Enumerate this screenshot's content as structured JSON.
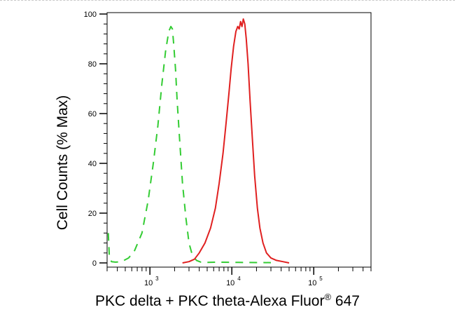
{
  "chart_data": {
    "type": "line",
    "title": "",
    "xlabel_main": "PKC delta + PKC theta-Alexa Fluor",
    "xlabel_mark": "®",
    "xlabel_tail": " 647",
    "ylabel": "Cell Counts (% Max)",
    "x_scale": "log",
    "xlim": [
      300,
      500000
    ],
    "ylim": [
      0,
      100
    ],
    "x_ticks": [
      {
        "value": 1000,
        "base": "10",
        "exp": "3"
      },
      {
        "value": 10000,
        "base": "10",
        "exp": "4"
      },
      {
        "value": 100000,
        "base": "10",
        "exp": "5"
      }
    ],
    "y_ticks": [
      0,
      20,
      40,
      60,
      80,
      100
    ],
    "grid": false,
    "series": [
      {
        "color": "#33cc33",
        "style": "dashed",
        "x": [
          310,
          320,
          340,
          380,
          450,
          550,
          650,
          800,
          950,
          1100,
          1250,
          1400,
          1550,
          1700,
          1800,
          1880,
          1950,
          2050,
          2150,
          2300,
          2500,
          2750,
          3000,
          3300,
          3700,
          4200,
          5000,
          7000,
          12000,
          30000
        ],
        "y": [
          12,
          2,
          0.5,
          0.3,
          0.5,
          2,
          5,
          12,
          25,
          40,
          55,
          72,
          85,
          93,
          95,
          94,
          88,
          78,
          65,
          50,
          32,
          18,
          8,
          3,
          1,
          0.3,
          0.2,
          0.3,
          0.2,
          0.1
        ]
      },
      {
        "color": "#e02020",
        "style": "solid",
        "x": [
          2500,
          3000,
          3500,
          4000,
          4700,
          5500,
          6300,
          7000,
          7800,
          8500,
          9200,
          9800,
          10500,
          11200,
          11800,
          12300,
          12800,
          13300,
          13800,
          14400,
          15000,
          15800,
          16700,
          17800,
          19000,
          20500,
          22000,
          24000,
          26500,
          30000,
          35000,
          42000,
          50000
        ],
        "y": [
          0,
          0.5,
          1.5,
          4,
          8,
          14,
          22,
          32,
          44,
          56,
          68,
          78,
          87,
          93,
          95,
          94,
          97,
          95,
          98,
          96,
          90,
          80,
          65,
          50,
          35,
          22,
          14,
          8,
          4,
          2,
          1,
          0.5,
          0
        ]
      }
    ]
  }
}
